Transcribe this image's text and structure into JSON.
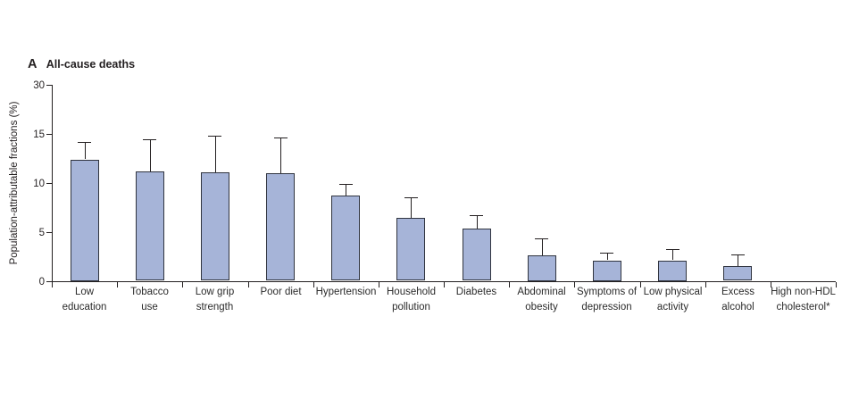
{
  "chart_data": {
    "type": "bar",
    "panel_letter": "A",
    "title": "All-cause deaths",
    "ylabel": "Population-attributable fractions (%)",
    "xlabel": "",
    "ylim": [
      0,
      30
    ],
    "yticks": [
      0,
      5,
      10,
      15,
      30
    ],
    "axis_note": "y-axis compressed above 15 (scale break between 15 and 30 tick)",
    "grid": false,
    "legend": false,
    "categories": [
      "Low education",
      "Tobacco use",
      "Low grip strength",
      "Poor diet",
      "Hypertension",
      "Household pollution",
      "Diabetes",
      "Abdominal obesity",
      "Symptoms of depression",
      "Low physical activity",
      "Excess alcohol",
      "High non-HDL cholesterol*"
    ],
    "label_lines": [
      [
        "Low",
        "education"
      ],
      [
        "Tobacco",
        "use"
      ],
      [
        "Low grip",
        "strength"
      ],
      [
        "Poor diet"
      ],
      [
        "Hypertension"
      ],
      [
        "Household",
        "pollution"
      ],
      [
        "Diabetes"
      ],
      [
        "Abdominal",
        "obesity"
      ],
      [
        "Symptoms of",
        "depression"
      ],
      [
        "Low physical",
        "activity"
      ],
      [
        "Excess",
        "alcohol"
      ],
      [
        "High non-HDL",
        "cholesterol*"
      ]
    ],
    "values": [
      12.4,
      11.2,
      11.1,
      11.0,
      8.7,
      6.4,
      5.3,
      2.6,
      2.1,
      2.1,
      1.5,
      0
    ],
    "upper_ci": [
      14.2,
      14.5,
      14.8,
      14.6,
      9.9,
      8.5,
      6.7,
      4.3,
      2.9,
      3.2,
      2.7,
      0
    ],
    "colors": {
      "bar_fill": "#a6b4d8",
      "bar_border": "#30343f",
      "axis": "#231f20",
      "text": "#2b2b2b"
    }
  }
}
